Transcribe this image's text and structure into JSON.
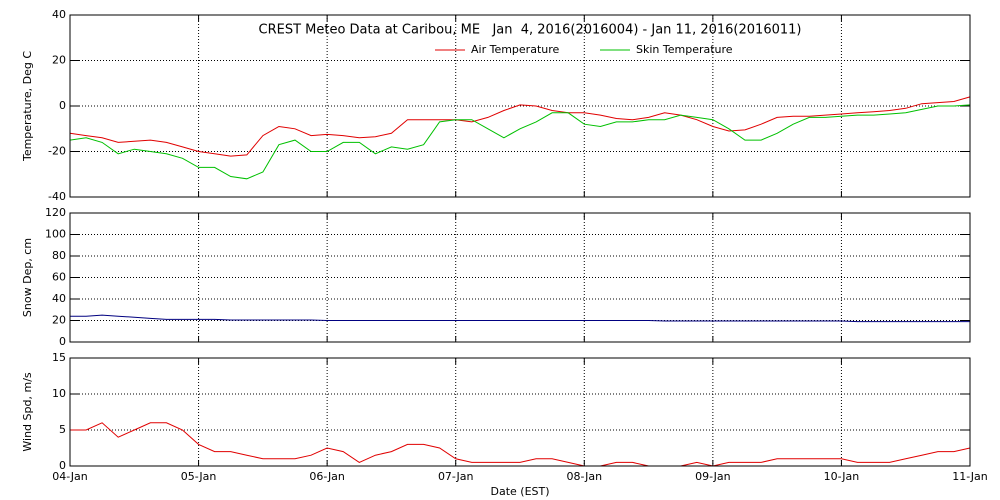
{
  "chart_data": [
    {
      "type": "line",
      "title": "CREST Meteo Data at Caribou, ME   Jan  4, 2016(2016004) - Jan 11, 2016(2016011)",
      "ylabel": "Temperature, Deg C",
      "legend": "upper center",
      "grid": true,
      "x": [
        0,
        0.125,
        0.25,
        0.375,
        0.5,
        0.625,
        0.75,
        0.875,
        1,
        1.125,
        1.25,
        1.375,
        1.5,
        1.625,
        1.75,
        1.875,
        2,
        2.125,
        2.25,
        2.375,
        2.5,
        2.625,
        2.75,
        2.875,
        3,
        3.125,
        3.25,
        3.375,
        3.5,
        3.625,
        3.75,
        3.875,
        4,
        4.125,
        4.25,
        4.375,
        4.5,
        4.625,
        4.75,
        4.875,
        5,
        5.125,
        5.25,
        5.375,
        5.5,
        5.625,
        5.75,
        5.875,
        6,
        6.125,
        6.25,
        6.375,
        6.5,
        6.625,
        6.75,
        6.875,
        7
      ],
      "xlim": [
        0,
        7
      ],
      "xticks": [
        0,
        1,
        2,
        3,
        4,
        5,
        6,
        7
      ],
      "ylim": [
        -40,
        40
      ],
      "yticks": [
        -40,
        -20,
        0,
        20,
        40
      ],
      "series": [
        {
          "name": "Air Temperature",
          "color": "#e00000",
          "values": [
            -12,
            -13,
            -14,
            -16,
            -15.5,
            -15,
            -16,
            -18,
            -20,
            -21,
            -22,
            -21.5,
            -13,
            -9,
            -10,
            -13,
            -12.5,
            -13,
            -14,
            -13.5,
            -12,
            -6,
            -6,
            -6,
            -6,
            -7,
            -5,
            -2,
            0.5,
            0,
            -2,
            -3,
            -3,
            -4,
            -5.5,
            -6,
            -5,
            -3,
            -4,
            -6,
            -9,
            -11,
            -10.5,
            -8,
            -5,
            -4.5,
            -4.5,
            -4,
            -3.5,
            -3,
            -2.5,
            -2,
            -1,
            1,
            1.5,
            2,
            4
          ]
        },
        {
          "name": "Skin Temperature",
          "color": "#00c000",
          "values": [
            -15,
            -14,
            -16,
            -21,
            -19,
            -20,
            -21,
            -23,
            -27,
            -27,
            -31,
            -32,
            -29,
            -17,
            -15,
            -20,
            -20,
            -16,
            -16,
            -21,
            -18,
            -19,
            -17,
            -7,
            -6,
            -6,
            -10,
            -14,
            -10,
            -7,
            -3,
            -3,
            -8,
            -9,
            -7,
            -7,
            -6,
            -6,
            -4,
            -5,
            -6,
            -10,
            -15,
            -15,
            -12,
            -8,
            -5,
            -5,
            -4.5,
            -4,
            -4,
            -3.5,
            -3,
            -1.5,
            0,
            0,
            0.5
          ]
        }
      ]
    },
    {
      "type": "line",
      "ylabel": "Snow Dep, cm",
      "grid": true,
      "x": [
        0,
        0.125,
        0.25,
        0.375,
        0.5,
        0.625,
        0.75,
        0.875,
        1,
        1.125,
        1.25,
        1.375,
        1.5,
        1.625,
        1.75,
        1.875,
        2,
        2.125,
        2.25,
        2.375,
        2.5,
        2.625,
        2.75,
        2.875,
        3,
        3.125,
        3.25,
        3.375,
        3.5,
        3.625,
        3.75,
        3.875,
        4,
        4.125,
        4.25,
        4.375,
        4.5,
        4.625,
        4.75,
        4.875,
        5,
        5.125,
        5.25,
        5.375,
        5.5,
        5.625,
        5.75,
        5.875,
        6,
        6.125,
        6.25,
        6.375,
        6.5,
        6.625,
        6.75,
        6.875,
        7
      ],
      "xlim": [
        0,
        7
      ],
      "xticks": [
        0,
        1,
        2,
        3,
        4,
        5,
        6,
        7
      ],
      "ylim": [
        0,
        120
      ],
      "yticks": [
        0,
        20,
        40,
        60,
        80,
        100,
        120
      ],
      "series": [
        {
          "color": "#000080",
          "values": [
            24,
            24,
            25,
            24,
            23,
            22,
            21,
            21,
            21,
            21,
            20.5,
            20.5,
            20.5,
            20.5,
            20.5,
            20.5,
            20,
            20,
            20,
            20,
            20,
            20,
            20,
            20,
            20,
            20,
            20,
            20,
            20,
            20,
            20,
            20,
            20,
            20,
            20,
            20,
            20,
            19.5,
            19.5,
            19.5,
            19.5,
            19.5,
            19.5,
            19.5,
            19.5,
            19.5,
            19.5,
            19.5,
            19.5,
            19,
            19,
            19,
            19,
            19,
            19,
            19,
            19
          ]
        }
      ]
    },
    {
      "type": "line",
      "ylabel": "Wind Spd, m/s",
      "xlabel": "Date (EST)",
      "grid": true,
      "x": [
        0,
        0.125,
        0.25,
        0.375,
        0.5,
        0.625,
        0.75,
        0.875,
        1,
        1.125,
        1.25,
        1.375,
        1.5,
        1.625,
        1.75,
        1.875,
        2,
        2.125,
        2.25,
        2.375,
        2.5,
        2.625,
        2.75,
        2.875,
        3,
        3.125,
        3.25,
        3.375,
        3.5,
        3.625,
        3.75,
        3.875,
        4,
        4.125,
        4.25,
        4.375,
        4.5,
        4.625,
        4.75,
        4.875,
        5,
        5.125,
        5.25,
        5.375,
        5.5,
        5.625,
        5.75,
        5.875,
        6,
        6.125,
        6.25,
        6.375,
        6.5,
        6.625,
        6.75,
        6.875,
        7
      ],
      "xlim": [
        0,
        7
      ],
      "xticks": [
        {
          "value": 0,
          "label": "04-Jan"
        },
        {
          "value": 1,
          "label": "05-Jan"
        },
        {
          "value": 2,
          "label": "06-Jan"
        },
        {
          "value": 3,
          "label": "07-Jan"
        },
        {
          "value": 4,
          "label": "08-Jan"
        },
        {
          "value": 5,
          "label": "09-Jan"
        },
        {
          "value": 6,
          "label": "10-Jan"
        },
        {
          "value": 7,
          "label": "11-Jan"
        }
      ],
      "ylim": [
        0,
        15
      ],
      "yticks": [
        0,
        5,
        10,
        15
      ],
      "series": [
        {
          "color": "#e00000",
          "values": [
            5,
            5,
            6,
            4,
            5,
            6,
            6,
            5,
            3,
            2,
            2,
            1.5,
            1,
            1,
            1,
            1.5,
            2.5,
            2,
            0.5,
            1.5,
            2,
            3,
            3,
            2.5,
            1,
            0.5,
            0.5,
            0.5,
            0.5,
            1,
            1,
            0.5,
            0,
            0,
            0.5,
            0.5,
            0,
            0,
            0,
            0.5,
            0,
            0.5,
            0.5,
            0.5,
            1,
            1,
            1,
            1,
            1,
            0.5,
            0.5,
            0.5,
            1,
            1.5,
            2,
            2,
            2.5
          ]
        }
      ]
    }
  ]
}
